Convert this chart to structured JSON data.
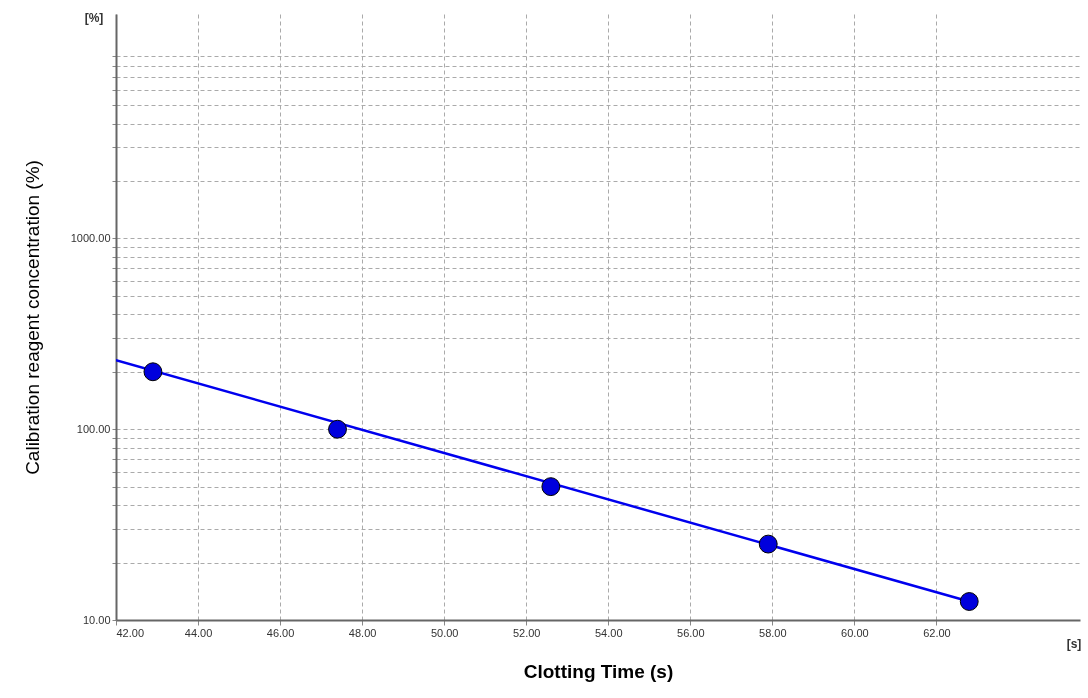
{
  "chart_data": {
    "type": "scatter",
    "xlabel": "Clotting Time (s)",
    "ylabel": "Calibration reagent concentration (%)",
    "annotations": [
      "[%]",
      "[s]"
    ],
    "log": "y",
    "grid": true,
    "xlim": [
      42,
      65.5
    ],
    "ylim": [
      10,
      15000
    ],
    "xticks": [
      {
        "value": 42,
        "label": "42.00"
      },
      {
        "value": 44,
        "label": "44.00"
      },
      {
        "value": 46,
        "label": "46.00"
      },
      {
        "value": 48,
        "label": "48.00"
      },
      {
        "value": 50,
        "label": "50.00"
      },
      {
        "value": 52,
        "label": "52.00"
      },
      {
        "value": 54,
        "label": "54.00"
      },
      {
        "value": 56,
        "label": "56.00"
      },
      {
        "value": 58,
        "label": "58.00"
      },
      {
        "value": 60,
        "label": "60.00"
      },
      {
        "value": 62,
        "label": "62.00"
      }
    ],
    "yticks": [
      {
        "value": 10,
        "label": "10.00"
      },
      {
        "value": 20,
        "label": null
      },
      {
        "value": 30,
        "label": null
      },
      {
        "value": 40,
        "label": null
      },
      {
        "value": 50,
        "label": null
      },
      {
        "value": 60,
        "label": null
      },
      {
        "value": 70,
        "label": null
      },
      {
        "value": 80,
        "label": null
      },
      {
        "value": 90,
        "label": null
      },
      {
        "value": 100,
        "label": "100.00"
      },
      {
        "value": 200,
        "label": null
      },
      {
        "value": 300,
        "label": null
      },
      {
        "value": 400,
        "label": null
      },
      {
        "value": 500,
        "label": null
      },
      {
        "value": 600,
        "label": null
      },
      {
        "value": 700,
        "label": null
      },
      {
        "value": 800,
        "label": null
      },
      {
        "value": 900,
        "label": null
      },
      {
        "value": 1000,
        "label": "1000.00"
      },
      {
        "value": 2000,
        "label": null
      },
      {
        "value": 3000,
        "label": null
      },
      {
        "value": 4000,
        "label": null
      },
      {
        "value": 5000,
        "label": null
      },
      {
        "value": 6000,
        "label": null
      },
      {
        "value": 7000,
        "label": null
      },
      {
        "value": 8000,
        "label": null
      },
      {
        "value": 9000,
        "label": null
      }
    ],
    "series": [
      {
        "type": "line",
        "color": "#0000ee",
        "marker": "none",
        "line_style": "solid",
        "x": [
          42,
          62.8
        ],
        "values": [
          230,
          12.5
        ]
      },
      {
        "color": "#0000dd",
        "marker": "circle",
        "x": [
          42.9,
          47.4,
          52.6,
          57.9,
          62.8
        ],
        "values": [
          200,
          100,
          50,
          25,
          12.5
        ]
      }
    ]
  }
}
